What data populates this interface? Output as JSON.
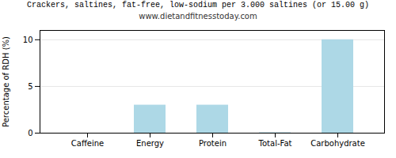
{
  "chart_data": {
    "type": "bar",
    "title": "Crackers, saltines, fat-free, low-sodium per 3.000 saltines (or 15.00 g)",
    "subtitle": "www.dietandfitnesstoday.com",
    "categories": [
      "Caffeine",
      "Energy",
      "Protein",
      "Total-Fat",
      "Carbohydrate"
    ],
    "values": [
      0,
      3.0,
      3.0,
      0.05,
      10.0
    ],
    "color": "#add8e6",
    "ylabel": "Percentage of RDH (%)",
    "ylim": [
      0,
      11
    ],
    "yticks": [
      0,
      5,
      10
    ],
    "grid": true
  }
}
